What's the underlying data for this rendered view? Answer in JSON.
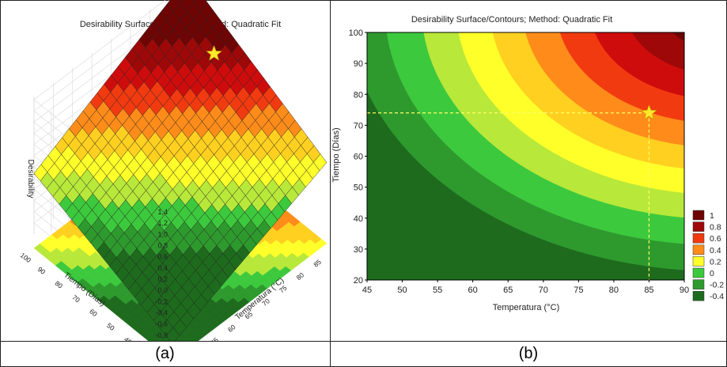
{
  "captions": {
    "a": "(a)",
    "b": "(b)"
  },
  "colors": {
    "levels": [
      "#1e6b1e",
      "#2e9a2e",
      "#3dc93d",
      "#b8e83a",
      "#ffff2a",
      "#ffd020",
      "#ff8c1a",
      "#f23a10",
      "#cf0c0c",
      "#9e0808",
      "#6e0404"
    ]
  },
  "chart_data": [
    {
      "type": "surface",
      "title": "Desirability Surface/Contours; Method: Quadratic Fit",
      "zlabel": "Desirability",
      "xlabel": "Temperatura (°C)",
      "ylabel": "Tiempo (Días)",
      "zlim": [
        -1.0,
        1.4
      ],
      "z_ticks": [
        "1,4",
        "1,2",
        "1,0",
        "0,8",
        "0,6",
        "0,4",
        "0,2",
        "0,0",
        "-0,2",
        "-0,4",
        "-0,6",
        "-0,8"
      ],
      "x_ticks": [
        "45",
        "50",
        "55",
        "60",
        "65",
        "70",
        "75",
        "80",
        "85",
        "90"
      ],
      "y_ticks": [
        "20",
        "30",
        "40",
        "50",
        "60",
        "70",
        "80",
        "90",
        "100"
      ],
      "optimum_marker": "star"
    },
    {
      "type": "contour",
      "title": "Desirability Surface/Contours; Method: Quadratic Fit",
      "xlabel": "Temperatura (°C)",
      "ylabel": "Tiempo (Días)",
      "xlim": [
        45,
        90
      ],
      "ylim": [
        20,
        100
      ],
      "x_ticks": [
        45,
        50,
        55,
        60,
        65,
        70,
        75,
        80,
        85,
        90
      ],
      "y_ticks": [
        20,
        30,
        40,
        50,
        60,
        70,
        80,
        90,
        100
      ],
      "optimum": {
        "x": 85,
        "y": 74
      },
      "legend": {
        "position": "right",
        "labels": [
          "1",
          "0.8",
          "0.6",
          "0.4",
          "0.2",
          "0",
          "-0.2",
          "-0.4"
        ]
      }
    }
  ]
}
